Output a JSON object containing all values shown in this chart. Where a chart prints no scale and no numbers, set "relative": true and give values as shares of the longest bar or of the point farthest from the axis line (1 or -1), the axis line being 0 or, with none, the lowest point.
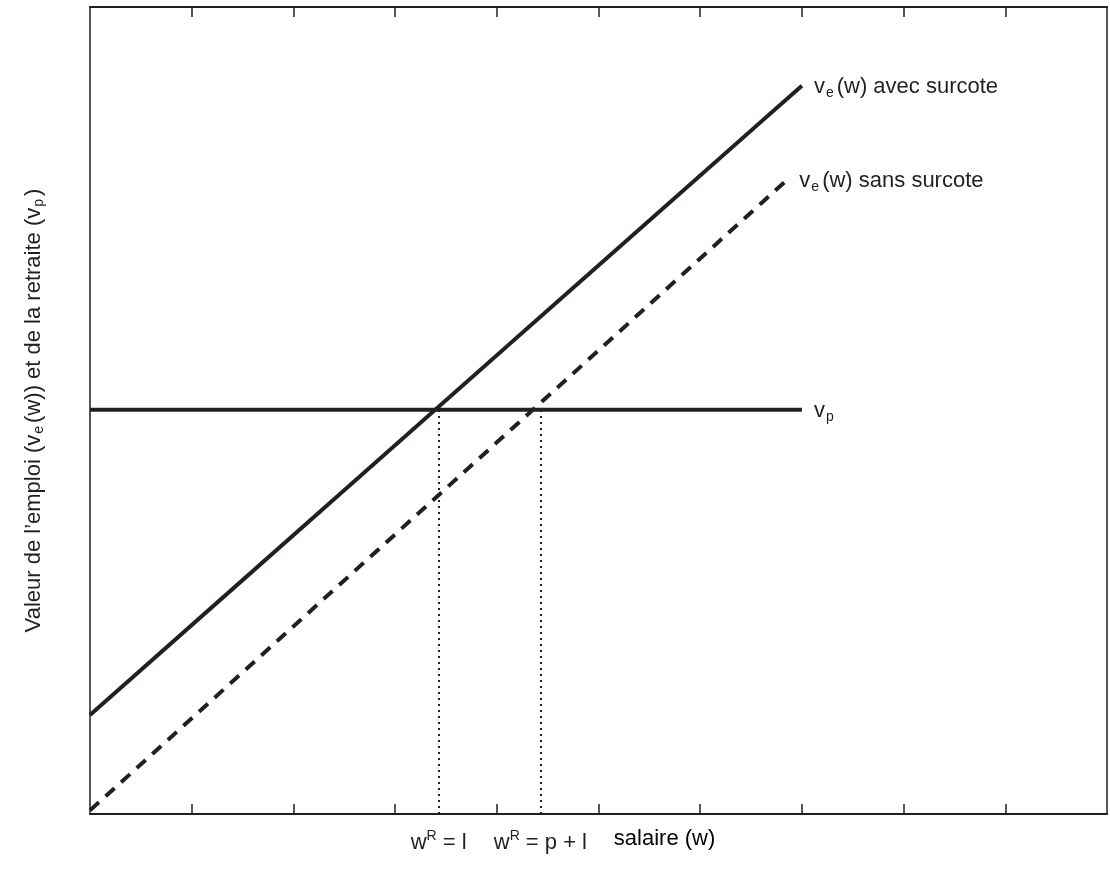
{
  "chart_data": {
    "type": "line",
    "relative": true,
    "xlabel": "salaire (w)",
    "ylabel": "Valeur de l’emploi (v$_{e}$(w)) et de la retraite (v$_{p}$)",
    "categories": [
      null,
      null,
      null,
      null,
      null,
      null,
      null,
      null,
      null,
      null,
      null,
      null,
      null,
      null,
      null,
      null,
      null,
      null,
      null,
      null,
      null,
      null,
      null,
      null,
      "w$^{R}$ = l",
      null,
      null,
      null,
      null,
      null,
      null,
      "w$^{R}$ = p + l",
      null,
      null,
      null,
      null,
      null,
      null,
      null,
      null,
      null,
      null,
      null,
      null,
      null,
      null,
      null,
      null,
      null,
      null,
      null,
      null,
      null,
      null,
      null,
      null,
      null,
      null,
      null,
      null,
      null,
      null,
      null,
      null,
      null,
      null,
      null,
      null,
      null,
      null,
      null
    ],
    "grid": false,
    "legend": false,
    "marker": "none",
    "series": [
      {
        "name": "v$_{e}$(w) avec surcote",
        "color": "#231f20",
        "line_style": "solid",
        "values": [
          0.136,
          null,
          null,
          null,
          null,
          null,
          null,
          null,
          null,
          null,
          null,
          null,
          null,
          null,
          null,
          null,
          null,
          null,
          null,
          null,
          null,
          null,
          null,
          null,
          null,
          null,
          null,
          null,
          null,
          null,
          null,
          null,
          null,
          null,
          null,
          null,
          null,
          null,
          null,
          null,
          null,
          null,
          null,
          null,
          null,
          null,
          null,
          null,
          null,
          1,
          null,
          null,
          null,
          null,
          null,
          null,
          null,
          null,
          null,
          null,
          null,
          null,
          null,
          null,
          null,
          null,
          null,
          null,
          null,
          null,
          null
        ]
      },
      {
        "name": "v$_{e}$(w) sans surcote",
        "color": "#231f20",
        "line_style": "dashed",
        "values": [
          0.005,
          null,
          null,
          null,
          null,
          null,
          null,
          null,
          null,
          null,
          null,
          null,
          null,
          null,
          null,
          null,
          null,
          null,
          null,
          null,
          null,
          null,
          null,
          null,
          null,
          null,
          null,
          null,
          null,
          null,
          null,
          null,
          null,
          null,
          null,
          null,
          null,
          null,
          null,
          null,
          null,
          null,
          null,
          null,
          null,
          null,
          null,
          null,
          0.871,
          null,
          null,
          null,
          null,
          null,
          null,
          null,
          null,
          null,
          null,
          null,
          null,
          null,
          null,
          null,
          null,
          null,
          null,
          null,
          null,
          null,
          null
        ]
      },
      {
        "name": "v$_{p}$",
        "color": "#231f20",
        "line_style": "solid",
        "values": [
          0.555,
          null,
          null,
          null,
          null,
          null,
          null,
          null,
          null,
          null,
          null,
          null,
          null,
          null,
          null,
          null,
          null,
          null,
          null,
          null,
          null,
          null,
          null,
          null,
          null,
          null,
          null,
          null,
          null,
          null,
          null,
          null,
          null,
          null,
          null,
          null,
          null,
          null,
          null,
          null,
          null,
          null,
          null,
          null,
          null,
          null,
          null,
          null,
          null,
          0.555,
          null,
          null,
          null,
          null,
          null,
          null,
          null,
          null,
          null,
          null,
          null,
          null,
          null,
          null,
          null,
          null,
          null,
          null,
          null,
          null,
          null
        ]
      }
    ],
    "ref_lines": [
      {
        "axis": "x",
        "value": "w$^{R}$ = l",
        "color": "#231f20",
        "line_style": "dotted"
      },
      {
        "axis": "x",
        "value": "w$^{R}$ = p + l",
        "color": "#231f20",
        "line_style": "dotted"
      }
    ]
  }
}
